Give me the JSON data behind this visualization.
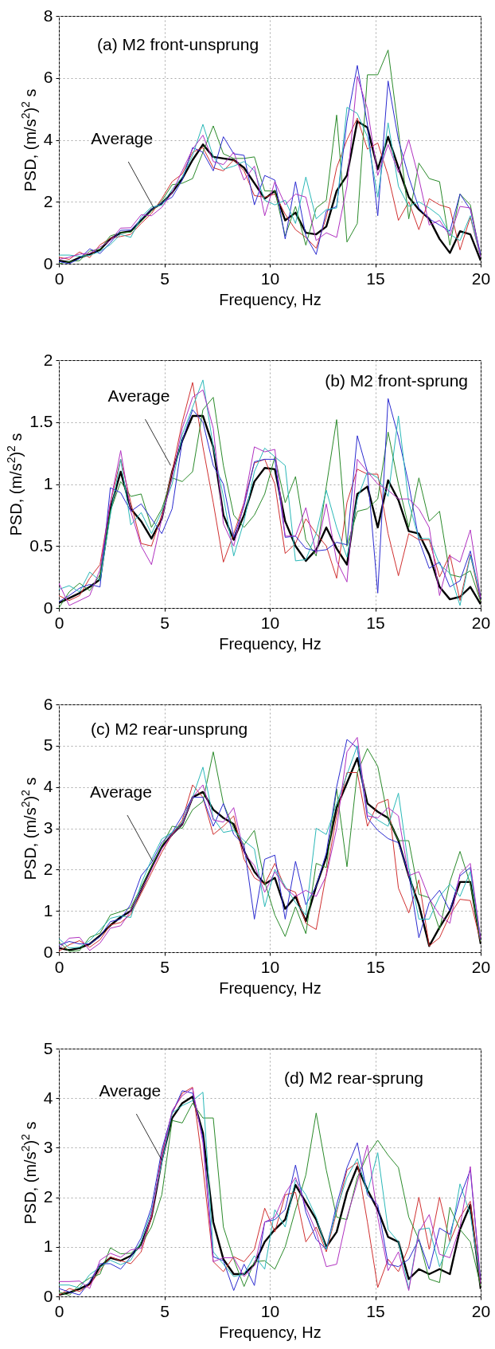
{
  "chart_data": [
    {
      "type": "line",
      "title": "(a) M2 front-unsprung",
      "xlabel": "Frequency, Hz",
      "ylabel": "PSD, (m/s$^{2}$)$^{2}$ s",
      "xlim": [
        0,
        20
      ],
      "xticks": [
        0,
        5,
        10,
        15,
        20
      ],
      "ylim": [
        0,
        8
      ],
      "yticks": [
        0,
        2,
        4,
        6,
        8
      ],
      "grid": true,
      "x": [
        0,
        0.49,
        0.98,
        1.46,
        1.95,
        2.44,
        2.93,
        3.41,
        3.9,
        4.39,
        4.88,
        5.37,
        5.85,
        6.34,
        6.83,
        7.32,
        7.8,
        8.29,
        8.78,
        9.27,
        9.76,
        10.24,
        10.73,
        11.22,
        11.71,
        12.2,
        12.68,
        13.17,
        13.66,
        14.15,
        14.63,
        15.12,
        15.61,
        16.1,
        16.59,
        17.07,
        17.56,
        18.05,
        18.54,
        19.02,
        19.51,
        20
      ],
      "annotations": [
        {
          "text": "Average",
          "x": 4.5,
          "y": 1.8
        }
      ],
      "series": [
        {
          "color": "#d03030",
          "values": [
            0.21,
            0.14,
            0.38,
            0.2,
            0.61,
            0.82,
            0.88,
            0.95,
            1.3,
            1.62,
            2.1,
            2.65,
            2.9,
            3.6,
            3.75,
            3.1,
            3.0,
            3.35,
            3.0,
            2.2,
            2.15,
            2.25,
            1.6,
            1.1,
            0.85,
            0.5,
            1.5,
            3.1,
            4.0,
            4.7,
            3.7,
            3.9,
            2.85,
            1.4,
            2.0,
            1.1,
            2.1,
            1.9,
            1.8,
            0.45,
            1.5,
            0.2
          ]
        },
        {
          "color": "#2a8a2a",
          "values": [
            0.0,
            0.07,
            0.1,
            0.41,
            0.47,
            0.9,
            1.0,
            1.02,
            1.37,
            1.69,
            2.03,
            2.55,
            2.6,
            2.75,
            3.6,
            4.45,
            3.55,
            3.4,
            3.4,
            3.45,
            2.35,
            2.35,
            0.9,
            1.85,
            0.6,
            1.8,
            2.05,
            4.8,
            0.7,
            1.3,
            6.1,
            6.1,
            6.9,
            4.3,
            1.45,
            3.25,
            2.75,
            2.65,
            0.6,
            2.25,
            1.9,
            0.2
          ]
        },
        {
          "color": "#2b2bd0",
          "values": [
            0.07,
            0.0,
            0.17,
            0.48,
            0.33,
            0.68,
            1.08,
            1.09,
            1.44,
            1.76,
            1.96,
            2.15,
            2.7,
            3.75,
            3.6,
            3.0,
            4.1,
            3.55,
            3.5,
            1.9,
            2.85,
            2.7,
            0.8,
            2.65,
            0.9,
            0.3,
            1.7,
            1.85,
            4.6,
            6.4,
            4.5,
            1.55,
            5.9,
            4.0,
            2.8,
            1.8,
            1.45,
            1.25,
            1.05,
            2.25,
            1.75,
            0.3
          ]
        },
        {
          "color": "#2ab8b8",
          "values": [
            0.28,
            0.28,
            0.24,
            0.27,
            0.4,
            0.62,
            0.95,
            0.85,
            1.51,
            1.83,
            1.89,
            2.4,
            2.8,
            3.5,
            4.5,
            3.45,
            3.05,
            3.15,
            3.3,
            3.0,
            2.05,
            1.9,
            2.05,
            1.3,
            2.8,
            1.45,
            1.75,
            1.8,
            5.05,
            4.85,
            4.1,
            2.15,
            4.55,
            2.5,
            1.85,
            2.0,
            1.8,
            1.55,
            0.95,
            0.75,
            1.55,
            0.2
          ]
        },
        {
          "color": "#b030c0",
          "values": [
            0.14,
            0.21,
            0.31,
            0.34,
            0.54,
            0.75,
            1.15,
            1.16,
            1.58,
            1.55,
            1.82,
            2.3,
            3.0,
            3.7,
            4.15,
            3.3,
            3.2,
            3.6,
            2.7,
            3.15,
            1.55,
            2.65,
            1.9,
            2.25,
            2.15,
            0.75,
            1.0,
            0.85,
            2.5,
            6.05,
            5.0,
            2.85,
            3.85,
            2.95,
            4.0,
            2.75,
            1.25,
            1.4,
            0.9,
            1.85,
            1.8,
            0.2
          ]
        },
        {
          "color": "#000000",
          "values": [
            0.1,
            0.05,
            0.2,
            0.3,
            0.45,
            0.8,
            1.0,
            1.05,
            1.4,
            1.75,
            1.95,
            2.3,
            2.75,
            3.35,
            3.85,
            3.45,
            3.4,
            3.35,
            3.1,
            2.6,
            2.1,
            2.35,
            1.4,
            1.65,
            1.0,
            0.95,
            1.2,
            2.35,
            2.85,
            4.6,
            4.4,
            3.05,
            4.1,
            3.1,
            2.15,
            1.75,
            1.45,
            0.8,
            0.35,
            1.05,
            0.95,
            0.1
          ]
        }
      ]
    },
    {
      "type": "line",
      "title": "(b) M2 front-sprung",
      "xlabel": "Frequency, Hz",
      "ylabel": "PSD, (m/s$^{2}$)$^{2}$ s",
      "xlim": [
        0,
        20
      ],
      "xticks": [
        0,
        5,
        10,
        15,
        20
      ],
      "ylim": [
        0,
        2
      ],
      "yticks": [
        0,
        0.5,
        1,
        1.5,
        2
      ],
      "grid": true,
      "x": [
        0,
        0.49,
        0.98,
        1.46,
        1.95,
        2.44,
        2.93,
        3.41,
        3.9,
        4.39,
        4.88,
        5.37,
        5.85,
        6.34,
        6.83,
        7.32,
        7.8,
        8.29,
        8.78,
        9.27,
        9.76,
        10.24,
        10.73,
        11.22,
        11.71,
        12.2,
        12.68,
        13.17,
        13.66,
        14.15,
        14.63,
        15.12,
        15.61,
        16.1,
        16.59,
        17.07,
        17.56,
        18.05,
        18.54,
        19.02,
        19.51,
        20
      ],
      "annotations": [
        {
          "text": "Average",
          "x": 5.3,
          "y": 1.15
        }
      ],
      "series": [
        {
          "color": "#d03030",
          "values": [
            0.1,
            0.06,
            0.1,
            0.24,
            0.35,
            0.85,
            1.2,
            0.85,
            0.52,
            0.5,
            0.75,
            1.1,
            1.5,
            1.82,
            1.3,
            0.85,
            0.37,
            0.6,
            0.85,
            1.17,
            1.2,
            1.0,
            0.44,
            0.52,
            0.72,
            0.6,
            0.5,
            0.24,
            0.85,
            1.12,
            1.08,
            1.08,
            0.6,
            0.26,
            0.6,
            0.55,
            0.55,
            0.25,
            0.43,
            0.06,
            0.43,
            0.05
          ]
        },
        {
          "color": "#2a8a2a",
          "values": [
            0.0,
            0.13,
            0.2,
            0.14,
            0.27,
            0.78,
            1.02,
            0.9,
            0.92,
            0.65,
            0.8,
            1.05,
            1.02,
            1.1,
            1.6,
            1.7,
            1.15,
            0.75,
            0.65,
            0.75,
            0.92,
            1.22,
            0.85,
            1.06,
            0.55,
            0.42,
            0.98,
            1.52,
            0.5,
            0.78,
            0.8,
            0.88,
            1.42,
            1.0,
            0.65,
            1.05,
            0.7,
            0.78,
            0.27,
            0.25,
            0.3,
            0.05
          ]
        },
        {
          "color": "#2b2bd0",
          "values": [
            0.05,
            0.1,
            0.16,
            0.19,
            0.17,
            0.97,
            0.93,
            0.78,
            0.84,
            0.72,
            0.6,
            0.8,
            1.35,
            1.6,
            1.5,
            1.15,
            1.0,
            0.57,
            0.82,
            1.18,
            1.2,
            1.2,
            0.57,
            0.58,
            0.48,
            0.46,
            0.47,
            0.53,
            0.51,
            1.39,
            1.1,
            0.12,
            1.69,
            1.38,
            1.0,
            0.55,
            0.32,
            0.37,
            0.17,
            0.22,
            0.46,
            0.07
          ]
        },
        {
          "color": "#2ab8b8",
          "values": [
            0.15,
            0.18,
            0.13,
            0.29,
            0.22,
            0.75,
            1.2,
            0.67,
            0.77,
            0.6,
            0.78,
            1.0,
            1.4,
            1.62,
            1.84,
            1.3,
            0.9,
            0.42,
            0.7,
            1.1,
            1.29,
            1.22,
            1.15,
            0.38,
            0.39,
            0.6,
            0.95,
            0.65,
            0.41,
            0.88,
            1.1,
            1.05,
            0.9,
            1.55,
            0.85,
            0.56,
            0.56,
            0.35,
            0.28,
            0.02,
            0.42,
            0.1
          ]
        },
        {
          "color": "#b030c0",
          "values": [
            0.2,
            0.02,
            0.06,
            0.1,
            0.31,
            0.85,
            1.27,
            0.78,
            0.5,
            0.35,
            0.72,
            1.05,
            1.45,
            1.7,
            1.76,
            1.45,
            0.68,
            0.5,
            0.85,
            1.3,
            1.26,
            1.28,
            0.58,
            0.58,
            0.81,
            0.44,
            0.84,
            0.38,
            0.21,
            1.2,
            1.1,
            1.0,
            0.95,
            0.88,
            0.88,
            0.8,
            0.65,
            0.1,
            0.42,
            0.37,
            0.63,
            0.08
          ]
        },
        {
          "color": "#000000",
          "values": [
            0.04,
            0.08,
            0.12,
            0.17,
            0.23,
            0.8,
            1.1,
            0.8,
            0.7,
            0.56,
            0.72,
            1.1,
            1.35,
            1.55,
            1.55,
            1.3,
            0.75,
            0.55,
            0.75,
            1.02,
            1.13,
            1.12,
            0.7,
            0.5,
            0.38,
            0.47,
            0.65,
            0.48,
            0.35,
            0.92,
            0.98,
            0.65,
            1.03,
            0.87,
            0.62,
            0.6,
            0.43,
            0.17,
            0.07,
            0.09,
            0.17,
            0.03
          ]
        }
      ]
    },
    {
      "type": "line",
      "title": "(c) M2 rear-unsprung",
      "xlabel": "Frequency, Hz",
      "ylabel": "PSD, (m/s$^{2}$)$^{2}$ s",
      "xlim": [
        0,
        20
      ],
      "xticks": [
        0,
        5,
        10,
        15,
        20
      ],
      "ylim": [
        0,
        6
      ],
      "yticks": [
        0,
        1,
        2,
        3,
        4,
        5,
        6
      ],
      "grid": true,
      "x": [
        0,
        0.49,
        0.98,
        1.46,
        1.95,
        2.44,
        2.93,
        3.41,
        3.9,
        4.39,
        4.88,
        5.37,
        5.85,
        6.34,
        6.83,
        7.32,
        7.8,
        8.29,
        8.78,
        9.27,
        9.76,
        10.24,
        10.73,
        11.22,
        11.71,
        12.2,
        12.68,
        13.17,
        13.66,
        14.15,
        14.63,
        15.12,
        15.61,
        16.1,
        16.59,
        17.07,
        17.56,
        18.05,
        18.54,
        19.02,
        19.51,
        20
      ],
      "annotations": [
        {
          "text": "Average",
          "x": 4.45,
          "y": 2.2
        }
      ],
      "series": [
        {
          "color": "#d03030",
          "values": [
            0.02,
            0.18,
            0.28,
            0.12,
            0.3,
            0.66,
            0.72,
            0.92,
            1.42,
            1.92,
            2.42,
            2.85,
            3.2,
            4.05,
            3.75,
            2.85,
            3.05,
            3.3,
            2.25,
            1.8,
            1.65,
            2.15,
            1.55,
            1.45,
            0.7,
            0.55,
            1.9,
            3.3,
            4.35,
            4.35,
            3.05,
            3.6,
            3.7,
            1.55,
            0.95,
            1.75,
            0.15,
            0.35,
            0.9,
            1.28,
            1.25,
            0.25
          ]
        },
        {
          "color": "#2a8a2a",
          "values": [
            0.25,
            0.02,
            0.04,
            0.36,
            0.46,
            0.9,
            0.98,
            1.08,
            1.58,
            2.08,
            2.58,
            3.05,
            3.0,
            3.45,
            3.65,
            4.85,
            3.6,
            3.0,
            2.6,
            2.95,
            1.7,
            0.9,
            0.38,
            1.1,
            0.45,
            2.15,
            2.05,
            3.95,
            2.07,
            4.35,
            4.93,
            4.5,
            3.25,
            2.7,
            2.7,
            1.4,
            1.32,
            0.55,
            1.7,
            2.44,
            1.65,
            0.25
          ]
        },
        {
          "color": "#2b2bd0",
          "values": [
            0.17,
            0.26,
            0.2,
            0.2,
            0.38,
            0.74,
            0.8,
            1.16,
            1.85,
            2.16,
            2.66,
            2.9,
            3.3,
            3.75,
            3.75,
            3.05,
            3.6,
            2.85,
            2.6,
            0.8,
            2.25,
            2.35,
            0.8,
            2.2,
            1.15,
            1.6,
            2.4,
            4.0,
            5.15,
            4.95,
            3.25,
            2.95,
            2.75,
            2.65,
            1.9,
            0.35,
            1.2,
            1.5,
            1.0,
            1.85,
            2.05,
            0.3
          ]
        },
        {
          "color": "#2ab8b8",
          "values": [
            0.33,
            0.1,
            0.12,
            0.28,
            0.54,
            0.82,
            0.88,
            0.84,
            1.66,
            2.24,
            2.74,
            2.9,
            3.15,
            3.75,
            4.48,
            3.25,
            2.9,
            2.95,
            2.7,
            2.5,
            1.1,
            2.0,
            1.6,
            1.2,
            0.9,
            3.0,
            2.85,
            3.6,
            4.3,
            5.0,
            3.4,
            3.2,
            3.05,
            3.85,
            2.05,
            0.8,
            0.8,
            1.35,
            1.65,
            1.35,
            1.95,
            0.3
          ]
        },
        {
          "color": "#b030c0",
          "values": [
            0.09,
            0.34,
            0.36,
            0.04,
            0.22,
            0.58,
            0.64,
            1.0,
            1.5,
            2.0,
            2.5,
            2.85,
            3.1,
            3.75,
            4.05,
            3.2,
            3.15,
            3.5,
            2.4,
            2.1,
            1.45,
            1.95,
            1.55,
            1.35,
            1.5,
            1.35,
            1.85,
            3.0,
            4.85,
            5.2,
            3.3,
            3.25,
            3.5,
            3.3,
            1.85,
            1.95,
            1.3,
            0.9,
            0.7,
            1.9,
            2.15,
            0.3
          ]
        },
        {
          "color": "#000000",
          "values": [
            0.1,
            0.05,
            0.1,
            0.2,
            0.4,
            0.65,
            0.85,
            1.0,
            1.5,
            2.05,
            2.55,
            2.85,
            3.1,
            3.75,
            3.88,
            3.45,
            3.25,
            3.1,
            2.45,
            1.95,
            1.65,
            1.8,
            1.05,
            1.35,
            0.75,
            1.6,
            2.3,
            3.5,
            4.1,
            4.7,
            3.6,
            3.4,
            3.25,
            2.7,
            1.85,
            1.15,
            0.15,
            0.6,
            1.0,
            1.7,
            1.7,
            0.2
          ]
        }
      ]
    },
    {
      "type": "line",
      "title": "(d) M2 rear-sprung",
      "xlabel": "Frequency, Hz",
      "ylabel": "PSD, (m/s$^{2}$)$^{2}$ s",
      "xlim": [
        0,
        20
      ],
      "xticks": [
        0,
        5,
        10,
        15,
        20
      ],
      "ylim": [
        0,
        5
      ],
      "yticks": [
        0,
        1,
        2,
        3,
        4,
        5
      ],
      "grid": true,
      "x": [
        0,
        0.49,
        0.98,
        1.46,
        1.95,
        2.44,
        2.93,
        3.41,
        3.9,
        4.39,
        4.88,
        5.37,
        5.85,
        6.34,
        6.83,
        7.32,
        7.8,
        8.29,
        8.78,
        9.27,
        9.76,
        10.24,
        10.73,
        11.22,
        11.71,
        12.2,
        12.68,
        13.17,
        13.66,
        14.15,
        14.63,
        15.12,
        15.61,
        16.1,
        16.59,
        17.07,
        17.56,
        18.05,
        18.54,
        19.02,
        19.51,
        20
      ],
      "annotations": [
        {
          "text": "Average",
          "x": 4.88,
          "y": 2.75
        }
      ],
      "series": [
        {
          "color": "#d03030",
          "values": [
            0.02,
            0.16,
            0.1,
            0.23,
            0.52,
            0.8,
            0.72,
            0.66,
            0.9,
            1.58,
            2.88,
            3.7,
            4.1,
            4.22,
            2.6,
            0.7,
            0.5,
            0.8,
            0.7,
            0.95,
            1.78,
            1.3,
            2.05,
            2.1,
            1.1,
            1.4,
            0.9,
            1.7,
            2.55,
            2.7,
            1.5,
            0.18,
            0.75,
            0.5,
            1.0,
            2.0,
            0.95,
            2.0,
            1.1,
            1.6,
            1.92,
            0.2
          ]
        },
        {
          "color": "#2a8a2a",
          "values": [
            0.09,
            0.02,
            0.24,
            0.37,
            0.45,
            0.98,
            0.86,
            0.87,
            1.04,
            1.4,
            2.05,
            3.55,
            3.5,
            3.9,
            3.6,
            3.6,
            1.4,
            0.75,
            0.2,
            0.7,
            0.72,
            0.55,
            1.0,
            1.75,
            2.45,
            3.7,
            2.55,
            1.6,
            1.55,
            2.4,
            2.85,
            3.15,
            2.85,
            2.6,
            1.6,
            1.15,
            0.35,
            0.28,
            1.8,
            1.35,
            1.1,
            0.2
          ]
        },
        {
          "color": "#2b2bd0",
          "values": [
            0.16,
            0.09,
            0.03,
            0.3,
            0.66,
            0.66,
            0.55,
            0.8,
            1.18,
            1.8,
            2.96,
            3.7,
            4.15,
            4.1,
            3.2,
            0.8,
            0.72,
            0.12,
            0.65,
            0.22,
            1.5,
            1.55,
            1.75,
            2.65,
            1.7,
            1.15,
            0.95,
            1.85,
            2.6,
            3.1,
            2.05,
            1.85,
            0.65,
            0.6,
            0.75,
            1.15,
            0.55,
            1.38,
            1.25,
            2.0,
            2.55,
            0.3
          ]
        },
        {
          "color": "#2ab8b8",
          "values": [
            0.23,
            0.23,
            0.17,
            0.44,
            0.59,
            0.73,
            0.64,
            0.73,
            1.11,
            1.72,
            2.7,
            3.7,
            3.85,
            3.95,
            4.12,
            0.9,
            0.65,
            0.4,
            0.45,
            0.82,
            0.55,
            1.75,
            1.4,
            2.35,
            2.05,
            1.6,
            0.95,
            1.75,
            2.4,
            2.78,
            2.1,
            2.9,
            1.35,
            1.1,
            0.15,
            1.35,
            1.38,
            0.6,
            1.1,
            2.27,
            1.65,
            0.3
          ]
        },
        {
          "color": "#b030c0",
          "values": [
            0.3,
            0.3,
            0.31,
            0.16,
            0.73,
            0.87,
            0.79,
            0.94,
            0.97,
            1.65,
            2.8,
            3.75,
            4.05,
            4.2,
            3.1,
            0.7,
            0.78,
            0.78,
            0.4,
            0.62,
            1.5,
            1.6,
            2.08,
            2.4,
            1.8,
            1.3,
            0.6,
            0.65,
            1.6,
            2.3,
            3.05,
            1.6,
            0.52,
            0.9,
            0.12,
            1.3,
            1.65,
            0.85,
            0.78,
            1.4,
            2.62,
            0.25
          ]
        },
        {
          "color": "#000000",
          "values": [
            0.03,
            0.08,
            0.15,
            0.25,
            0.6,
            0.78,
            0.72,
            0.82,
            1.05,
            1.6,
            2.75,
            3.6,
            3.9,
            4.03,
            3.3,
            1.5,
            0.75,
            0.45,
            0.45,
            0.65,
            1.1,
            1.35,
            1.55,
            2.25,
            1.9,
            1.55,
            1.0,
            1.3,
            2.1,
            2.62,
            2.15,
            1.75,
            1.2,
            1.1,
            0.35,
            0.55,
            0.45,
            0.55,
            0.45,
            1.35,
            1.85,
            0.15
          ]
        }
      ]
    }
  ]
}
